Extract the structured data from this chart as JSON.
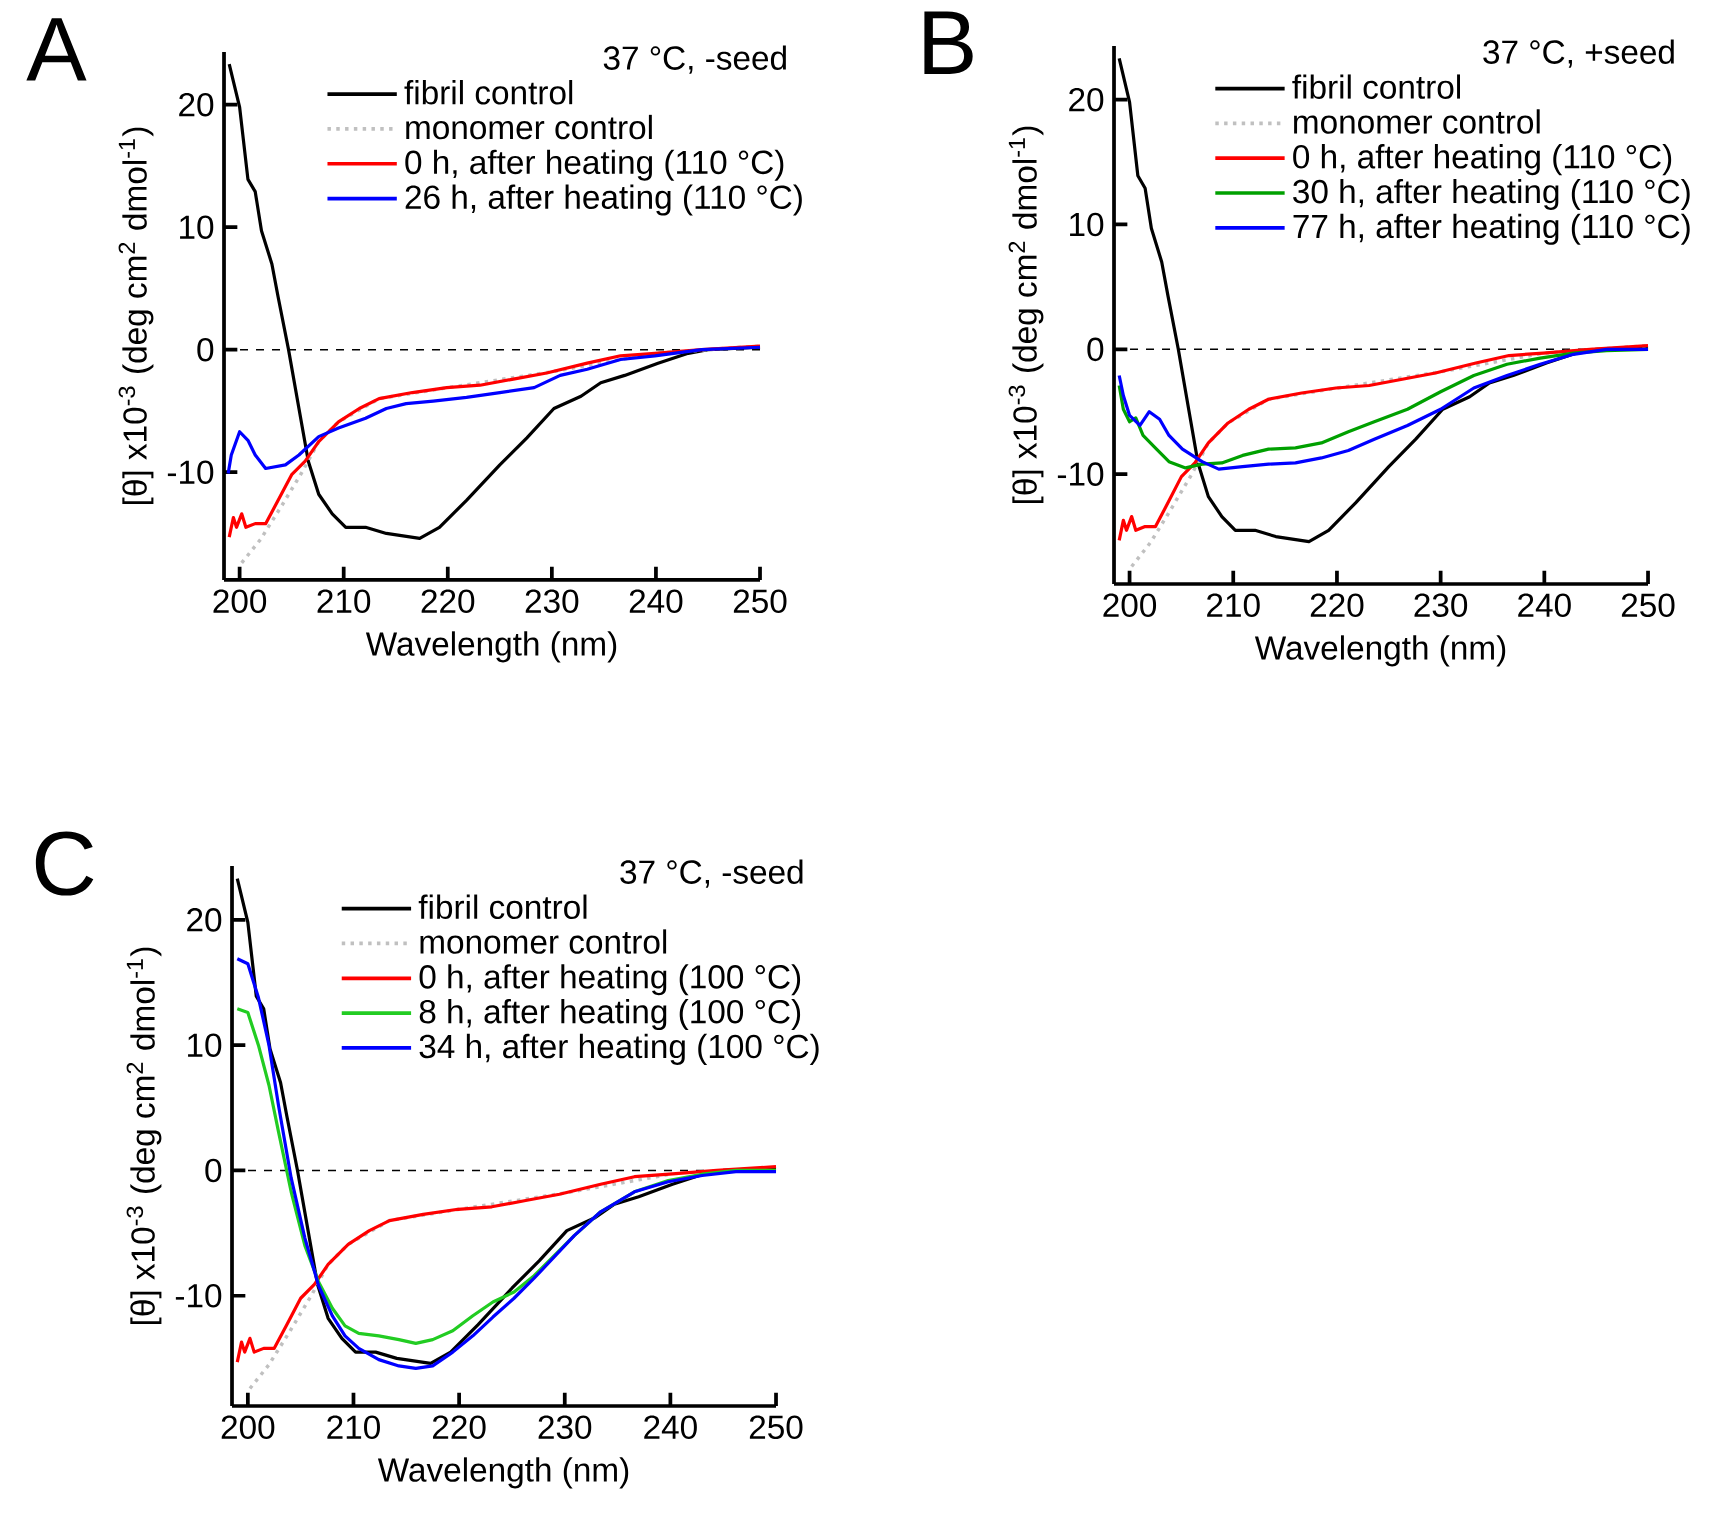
{
  "chart_data": [
    {
      "type": "line",
      "title": "37 °C, -seed",
      "xlabel": "Wavelength (nm)",
      "ylabel": "[θ] x10$^{-3}$ (deg cm$^{2}$ dmol$^{-1}$)",
      "annotations": [
        "A"
      ],
      "xlim": [
        198.5,
        250
      ],
      "ylim": [
        -18.8,
        24.3
      ],
      "xticks": [
        200,
        210,
        220,
        230,
        240,
        250
      ],
      "yticks": [
        -10,
        0,
        10,
        20
      ],
      "legend": "top right",
      "ref_lines": [
        {
          "axis": "y",
          "value": 0,
          "color": "#000000",
          "line_style": "dashed"
        }
      ],
      "series": [
        {
          "name": "fibril control",
          "color": "#000000",
          "line_style": "solid",
          "x": [
            199.0,
            200.0,
            200.8,
            201.5,
            202.1,
            203.1,
            203.7,
            204.7,
            205.7,
            206.6,
            207.6,
            208.9,
            210.2,
            212.1,
            214.1,
            217.3,
            219.2,
            221.8,
            225.0,
            227.6,
            230.2,
            232.8,
            234.7,
            237.0,
            240.2,
            243.1,
            245.0,
            250.0
          ],
          "values": [
            23.3,
            19.8,
            13.9,
            12.9,
            9.7,
            7.0,
            4.3,
            0.0,
            -4.8,
            -9.1,
            -11.8,
            -13.4,
            -14.5,
            -14.5,
            -15.0,
            -15.4,
            -14.5,
            -12.3,
            -9.4,
            -7.2,
            -4.8,
            -3.8,
            -2.7,
            -2.1,
            -1.1,
            -0.3,
            0.0,
            0.2
          ]
        },
        {
          "name": "monomer control",
          "color": "#c0c0c0",
          "line_style": "dotted",
          "x": [
            200.2,
            202.0,
            204.0,
            206.0,
            207.6,
            209.5,
            213.4,
            220.0,
            230.0,
            240.0,
            250.0
          ],
          "values": [
            -17.4,
            -15.5,
            -12.8,
            -10.0,
            -7.5,
            -5.9,
            -4.0,
            -3.1,
            -1.8,
            -0.3,
            0.3
          ]
        },
        {
          "name": "0 h, after heating (110 °C)",
          "color": "#ff0000",
          "line_style": "solid",
          "x": [
            199.0,
            199.4,
            199.7,
            200.2,
            200.6,
            201.5,
            202.5,
            203.7,
            205.0,
            206.3,
            207.6,
            209.5,
            211.5,
            213.4,
            216.6,
            219.9,
            223.1,
            226.3,
            229.5,
            233.4,
            236.6,
            239.9,
            244.4,
            250.0
          ],
          "values": [
            -15.3,
            -13.7,
            -14.5,
            -13.4,
            -14.5,
            -14.2,
            -14.2,
            -12.3,
            -10.2,
            -9.1,
            -7.5,
            -5.9,
            -4.8,
            -4.0,
            -3.5,
            -3.1,
            -2.9,
            -2.4,
            -1.9,
            -1.1,
            -0.5,
            -0.3,
            0.0,
            0.3
          ]
        },
        {
          "name": "26 h, after heating (110 °C)",
          "color": "#0000ff",
          "line_style": "solid",
          "x": [
            198.9,
            199.2,
            200.0,
            200.8,
            201.5,
            202.5,
            204.4,
            205.7,
            207.6,
            209.5,
            212.1,
            214.1,
            216.0,
            218.6,
            221.8,
            225.0,
            228.3,
            230.8,
            233.4,
            236.6,
            239.9,
            244.4,
            250.0
          ],
          "values": [
            -10.1,
            -8.6,
            -6.7,
            -7.4,
            -8.6,
            -9.7,
            -9.4,
            -8.6,
            -7.1,
            -6.4,
            -5.6,
            -4.8,
            -4.4,
            -4.2,
            -3.9,
            -3.5,
            -3.1,
            -2.1,
            -1.6,
            -0.8,
            -0.5,
            0.0,
            0.2
          ]
        }
      ]
    },
    {
      "type": "line",
      "title": "37 °C, +seed",
      "xlabel": "Wavelength (nm)",
      "ylabel": "[θ] x10$^{-3}$ (deg cm$^{2}$ dmol$^{-1}$)",
      "annotations": [
        "B"
      ],
      "xlim": [
        198.5,
        250
      ],
      "ylim": [
        -18.8,
        24.3
      ],
      "xticks": [
        200,
        210,
        220,
        230,
        240,
        250
      ],
      "yticks": [
        -10,
        0,
        10,
        20
      ],
      "legend": "top right",
      "ref_lines": [
        {
          "axis": "y",
          "value": 0,
          "color": "#000000",
          "line_style": "dashed"
        }
      ],
      "series": [
        {
          "name": "fibril control",
          "color": "#000000",
          "line_style": "solid",
          "x": [
            199.0,
            200.0,
            200.8,
            201.5,
            202.1,
            203.1,
            203.7,
            204.7,
            205.7,
            206.6,
            207.6,
            208.9,
            210.2,
            212.1,
            214.1,
            217.3,
            219.2,
            221.8,
            225.0,
            227.6,
            230.2,
            232.8,
            234.7,
            237.0,
            240.2,
            243.1,
            245.0,
            250.0
          ],
          "values": [
            23.3,
            19.8,
            13.9,
            12.9,
            9.7,
            7.0,
            4.3,
            0.0,
            -4.8,
            -9.1,
            -11.8,
            -13.4,
            -14.5,
            -14.5,
            -15.0,
            -15.4,
            -14.5,
            -12.3,
            -9.4,
            -7.2,
            -4.8,
            -3.8,
            -2.7,
            -2.1,
            -1.1,
            -0.3,
            0.0,
            0.2
          ]
        },
        {
          "name": "monomer control",
          "color": "#c0c0c0",
          "line_style": "dotted",
          "x": [
            200.2,
            202.0,
            204.0,
            206.0,
            207.6,
            209.5,
            213.4,
            220.0,
            230.0,
            240.0,
            250.0
          ],
          "values": [
            -17.4,
            -15.5,
            -12.8,
            -10.0,
            -7.5,
            -5.9,
            -4.0,
            -3.1,
            -1.8,
            -0.3,
            0.3
          ]
        },
        {
          "name": "0 h, after heating (110 °C)",
          "color": "#ff0000",
          "line_style": "solid",
          "x": [
            199.0,
            199.4,
            199.7,
            200.2,
            200.6,
            201.5,
            202.5,
            203.7,
            205.0,
            206.3,
            207.6,
            209.5,
            211.5,
            213.4,
            216.6,
            219.9,
            223.1,
            226.3,
            229.5,
            233.4,
            236.6,
            239.9,
            244.4,
            250.0
          ],
          "values": [
            -15.3,
            -13.7,
            -14.5,
            -13.4,
            -14.5,
            -14.2,
            -14.2,
            -12.3,
            -10.2,
            -9.1,
            -7.5,
            -5.9,
            -4.8,
            -4.0,
            -3.5,
            -3.1,
            -2.9,
            -2.4,
            -1.9,
            -1.1,
            -0.5,
            -0.3,
            0.0,
            0.3
          ]
        },
        {
          "name": "30 h, after heating (110 °C)",
          "color": "#00a000",
          "line_style": "solid",
          "x": [
            199.0,
            199.4,
            200.0,
            200.6,
            201.3,
            202.6,
            203.8,
            205.4,
            207.0,
            208.9,
            210.9,
            213.4,
            216.0,
            218.5,
            221.1,
            223.6,
            226.8,
            230.0,
            233.2,
            236.4,
            239.6,
            242.8,
            246.0,
            250.0
          ],
          "values": [
            -2.9,
            -4.8,
            -5.8,
            -5.5,
            -6.9,
            -8.0,
            -9.0,
            -9.5,
            -9.2,
            -9.1,
            -8.5,
            -8.0,
            -7.9,
            -7.5,
            -6.6,
            -5.8,
            -4.8,
            -3.4,
            -2.1,
            -1.2,
            -0.7,
            -0.3,
            -0.1,
            0.0
          ]
        },
        {
          "name": "77 h, after heating (110 °C)",
          "color": "#0000ff",
          "line_style": "solid",
          "x": [
            199.0,
            199.4,
            200.0,
            201.0,
            201.9,
            202.9,
            203.8,
            205.1,
            207.0,
            208.6,
            210.9,
            213.4,
            216.0,
            218.5,
            221.1,
            223.6,
            226.8,
            230.0,
            233.2,
            236.4,
            239.6,
            242.8,
            246.0,
            250.0
          ],
          "values": [
            -2.1,
            -3.7,
            -5.3,
            -6.1,
            -5.0,
            -5.6,
            -6.9,
            -8.0,
            -9.0,
            -9.6,
            -9.4,
            -9.2,
            -9.1,
            -8.7,
            -8.1,
            -7.2,
            -6.1,
            -4.8,
            -3.1,
            -2.1,
            -1.2,
            -0.4,
            0.0,
            0.0
          ]
        }
      ]
    },
    {
      "type": "line",
      "title": "37 °C, -seed",
      "xlabel": "Wavelength (nm)",
      "ylabel": "[θ] x10$^{-3}$ (deg cm$^{2}$ dmol$^{-1}$)",
      "annotations": [
        "C"
      ],
      "xlim": [
        198.5,
        250
      ],
      "ylim": [
        -18.8,
        24.3
      ],
      "xticks": [
        200,
        210,
        220,
        230,
        240,
        250
      ],
      "yticks": [
        -10,
        0,
        10,
        20
      ],
      "legend": "top right",
      "ref_lines": [
        {
          "axis": "y",
          "value": 0,
          "color": "#000000",
          "line_style": "dashed"
        }
      ],
      "series": [
        {
          "name": "fibril control",
          "color": "#000000",
          "line_style": "solid",
          "x": [
            199.0,
            200.0,
            200.8,
            201.5,
            202.1,
            203.1,
            203.7,
            204.7,
            205.7,
            206.6,
            207.6,
            208.9,
            210.2,
            212.1,
            214.1,
            217.3,
            219.2,
            221.8,
            225.0,
            227.6,
            230.2,
            232.8,
            234.7,
            237.0,
            240.2,
            243.1,
            245.0,
            250.0
          ],
          "values": [
            23.3,
            19.8,
            13.9,
            12.9,
            9.7,
            7.0,
            4.3,
            0.0,
            -4.8,
            -9.1,
            -11.8,
            -13.4,
            -14.5,
            -14.5,
            -15.0,
            -15.4,
            -14.5,
            -12.3,
            -9.4,
            -7.2,
            -4.8,
            -3.8,
            -2.7,
            -2.1,
            -1.1,
            -0.3,
            0.0,
            0.2
          ]
        },
        {
          "name": "monomer control",
          "color": "#c0c0c0",
          "line_style": "dotted",
          "x": [
            200.2,
            202.0,
            204.0,
            206.0,
            207.6,
            209.5,
            213.4,
            220.0,
            230.0,
            240.0
          ],
          "values": [
            -17.4,
            -15.5,
            -12.8,
            -10.0,
            -7.5,
            -5.9,
            -4.0,
            -3.1,
            -1.8,
            -0.3
          ]
        },
        {
          "name": "0 h, after heating (100 °C)",
          "color": "#ff0000",
          "line_style": "solid",
          "x": [
            199.0,
            199.4,
            199.7,
            200.2,
            200.6,
            201.5,
            202.5,
            203.7,
            205.0,
            206.3,
            207.6,
            209.5,
            211.5,
            213.4,
            216.6,
            219.9,
            223.1,
            226.3,
            229.5,
            233.4,
            236.6,
            239.9,
            244.4,
            250.0
          ],
          "values": [
            -15.3,
            -13.7,
            -14.5,
            -13.4,
            -14.5,
            -14.2,
            -14.2,
            -12.3,
            -10.2,
            -9.1,
            -7.5,
            -5.9,
            -4.8,
            -4.0,
            -3.5,
            -3.1,
            -2.9,
            -2.4,
            -1.9,
            -1.1,
            -0.5,
            -0.3,
            0.0,
            0.3
          ]
        },
        {
          "name": "8 h, after heating (100 °C)",
          "color": "#22cc22",
          "line_style": "solid",
          "x": [
            199.0,
            200.0,
            201.0,
            202.0,
            202.9,
            204.1,
            205.4,
            206.7,
            208.0,
            209.2,
            210.5,
            212.4,
            214.3,
            215.9,
            217.5,
            219.4,
            221.3,
            223.2,
            225.2,
            227.1,
            229.0,
            230.9,
            233.4,
            236.6,
            239.8,
            243.0,
            246.2,
            250.0
          ],
          "values": [
            12.9,
            12.6,
            10.0,
            6.8,
            3.1,
            -1.7,
            -6.0,
            -8.9,
            -11.0,
            -12.4,
            -13.0,
            -13.2,
            -13.5,
            -13.8,
            -13.5,
            -12.8,
            -11.6,
            -10.5,
            -9.7,
            -8.4,
            -6.8,
            -5.2,
            -3.3,
            -1.7,
            -0.8,
            -0.3,
            0.0,
            0.0
          ]
        },
        {
          "name": "34 h, after heating (100 °C)",
          "color": "#0000ff",
          "line_style": "solid",
          "x": [
            199.0,
            200.0,
            201.0,
            202.0,
            202.9,
            204.1,
            205.4,
            206.7,
            208.0,
            209.2,
            210.5,
            212.4,
            214.3,
            215.9,
            217.5,
            219.4,
            221.3,
            223.2,
            225.2,
            227.1,
            229.0,
            230.9,
            233.4,
            236.6,
            239.8,
            243.0,
            246.2,
            250.0
          ],
          "values": [
            16.9,
            16.5,
            13.8,
            10.0,
            5.2,
            -0.6,
            -5.4,
            -9.2,
            -11.6,
            -13.2,
            -14.2,
            -15.1,
            -15.6,
            -15.8,
            -15.6,
            -14.5,
            -13.2,
            -11.7,
            -10.2,
            -8.6,
            -6.9,
            -5.2,
            -3.3,
            -1.7,
            -0.9,
            -0.4,
            -0.1,
            -0.1
          ]
        }
      ]
    }
  ]
}
